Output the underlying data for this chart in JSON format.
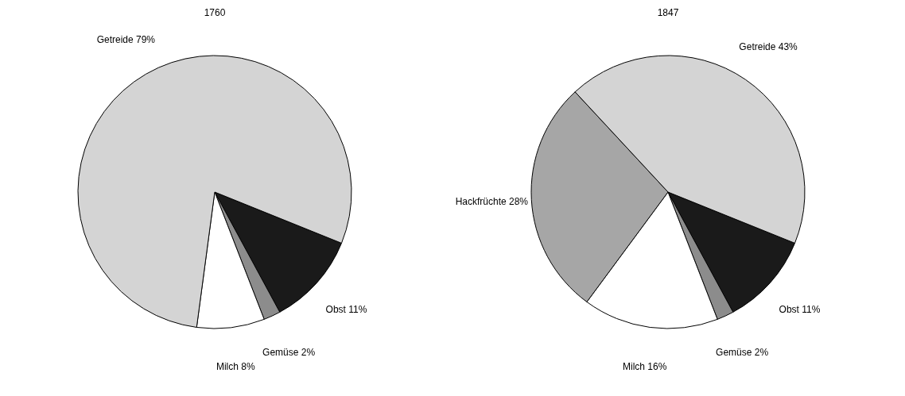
{
  "chart_data": [
    {
      "type": "pie",
      "title": "1760",
      "categories": [
        "Obst",
        "Gemüse",
        "Milch",
        "Getreide"
      ],
      "values": [
        11,
        2,
        8,
        79
      ],
      "value_labels": [
        "11%",
        "2%",
        "8%",
        "79%"
      ],
      "colors": [
        "#1a1a1a",
        "#8c8c8c",
        "#ffffff",
        "#d4d4d4"
      ]
    },
    {
      "type": "pie",
      "title": "1847",
      "categories": [
        "Obst",
        "Gemüse",
        "Milch",
        "Hackfrüchte",
        "Getreide"
      ],
      "values": [
        11,
        2,
        16,
        28,
        43
      ],
      "value_labels": [
        "11%",
        "2%",
        "16%",
        "28%",
        "43%"
      ],
      "colors": [
        "#1a1a1a",
        "#8c8c8c",
        "#ffffff",
        "#a6a6a6",
        "#d4d4d4"
      ]
    }
  ]
}
